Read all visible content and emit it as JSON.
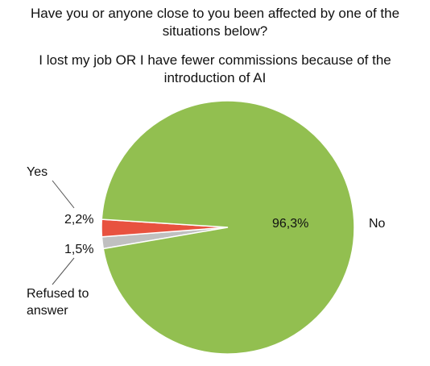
{
  "chart_data": {
    "type": "pie",
    "title": "Have you or anyone close to you been affected by one of the situations below?",
    "subtitle": "I lost my job OR I have fewer commissions because of the introduction of AI",
    "categories": [
      "No",
      "Yes",
      "Refused to answer"
    ],
    "values": [
      96.3,
      2.2,
      1.5
    ],
    "value_labels": [
      "96,3%",
      "2,2%",
      "1,5%"
    ],
    "colors": [
      "#92bf50",
      "#e8523f",
      "#c0c0c0"
    ]
  }
}
